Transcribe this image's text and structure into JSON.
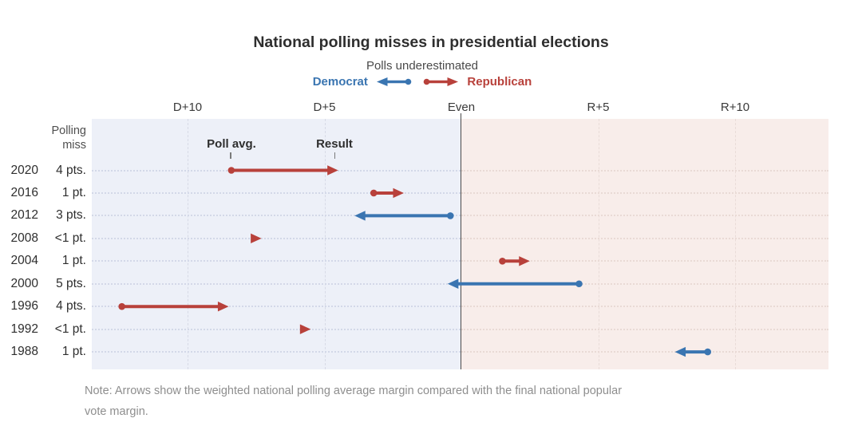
{
  "header": {
    "title": "National polling misses in presidential elections",
    "legend_title": "Polls underestimated",
    "legend_democrat": "Democrat",
    "legend_republican": "Republican"
  },
  "col_header": {
    "line1": "Polling",
    "line2": "miss"
  },
  "annotations": {
    "poll_avg": "Poll avg.",
    "result": "Result"
  },
  "note": {
    "line1": "Note: Arrows show the weighted national polling average margin compared with the final national popular",
    "line2": "vote margin."
  },
  "colors": {
    "democrat": "#3a75b1",
    "republican": "#b8413b",
    "democrat_bg": "#edf0f8",
    "republican_bg": "#f8edea",
    "even_line": "#4a4a4a",
    "grid_dem_side": "#d7dae6",
    "grid_rep_side": "#e9dcd8",
    "rowline_dem_side": "#d3d8e8",
    "rowline_rep_side": "#e9dad5",
    "note_text": "#8e8e8e"
  },
  "chart_data": {
    "type": "arrow",
    "title": "National polling misses in presidential elections",
    "x_axis": {
      "ticks": [
        {
          "label": "D+10",
          "value": -10
        },
        {
          "label": "D+5",
          "value": -5
        },
        {
          "label": "Even",
          "value": 0
        },
        {
          "label": "R+5",
          "value": 5
        },
        {
          "label": "R+10",
          "value": 10
        }
      ],
      "range": [
        -13.5,
        13.5
      ],
      "sign_convention": "negative = Democratic margin, positive = Republican margin",
      "grid": "dashed vertical at labeled ticks, solid dark line at Even"
    },
    "rows": [
      {
        "year": "2020",
        "miss": "4 pts.",
        "underestimated": "Republican",
        "poll_avg": -8.4,
        "result": -4.5
      },
      {
        "year": "2016",
        "miss": "1 pt.",
        "underestimated": "Republican",
        "poll_avg": -3.2,
        "result": -2.1
      },
      {
        "year": "2012",
        "miss": "3 pts.",
        "underestimated": "Democrat",
        "poll_avg": -0.4,
        "result": -3.9
      },
      {
        "year": "2008",
        "miss": "<1 pt.",
        "underestimated": "Republican",
        "poll_avg": -7.7,
        "result": -7.3
      },
      {
        "year": "2004",
        "miss": "1 pt.",
        "underestimated": "Republican",
        "poll_avg": 1.5,
        "result": 2.5
      },
      {
        "year": "2000",
        "miss": "5 pts.",
        "underestimated": "Democrat",
        "poll_avg": 4.3,
        "result": -0.5
      },
      {
        "year": "1996",
        "miss": "4 pts.",
        "underestimated": "Republican",
        "poll_avg": -12.4,
        "result": -8.5
      },
      {
        "year": "1992",
        "miss": "<1 pt.",
        "underestimated": "Republican",
        "poll_avg": -5.9,
        "result": -5.5
      },
      {
        "year": "1988",
        "miss": "1 pt.",
        "underestimated": "Democrat",
        "poll_avg": 9.0,
        "result": 7.8
      }
    ]
  }
}
